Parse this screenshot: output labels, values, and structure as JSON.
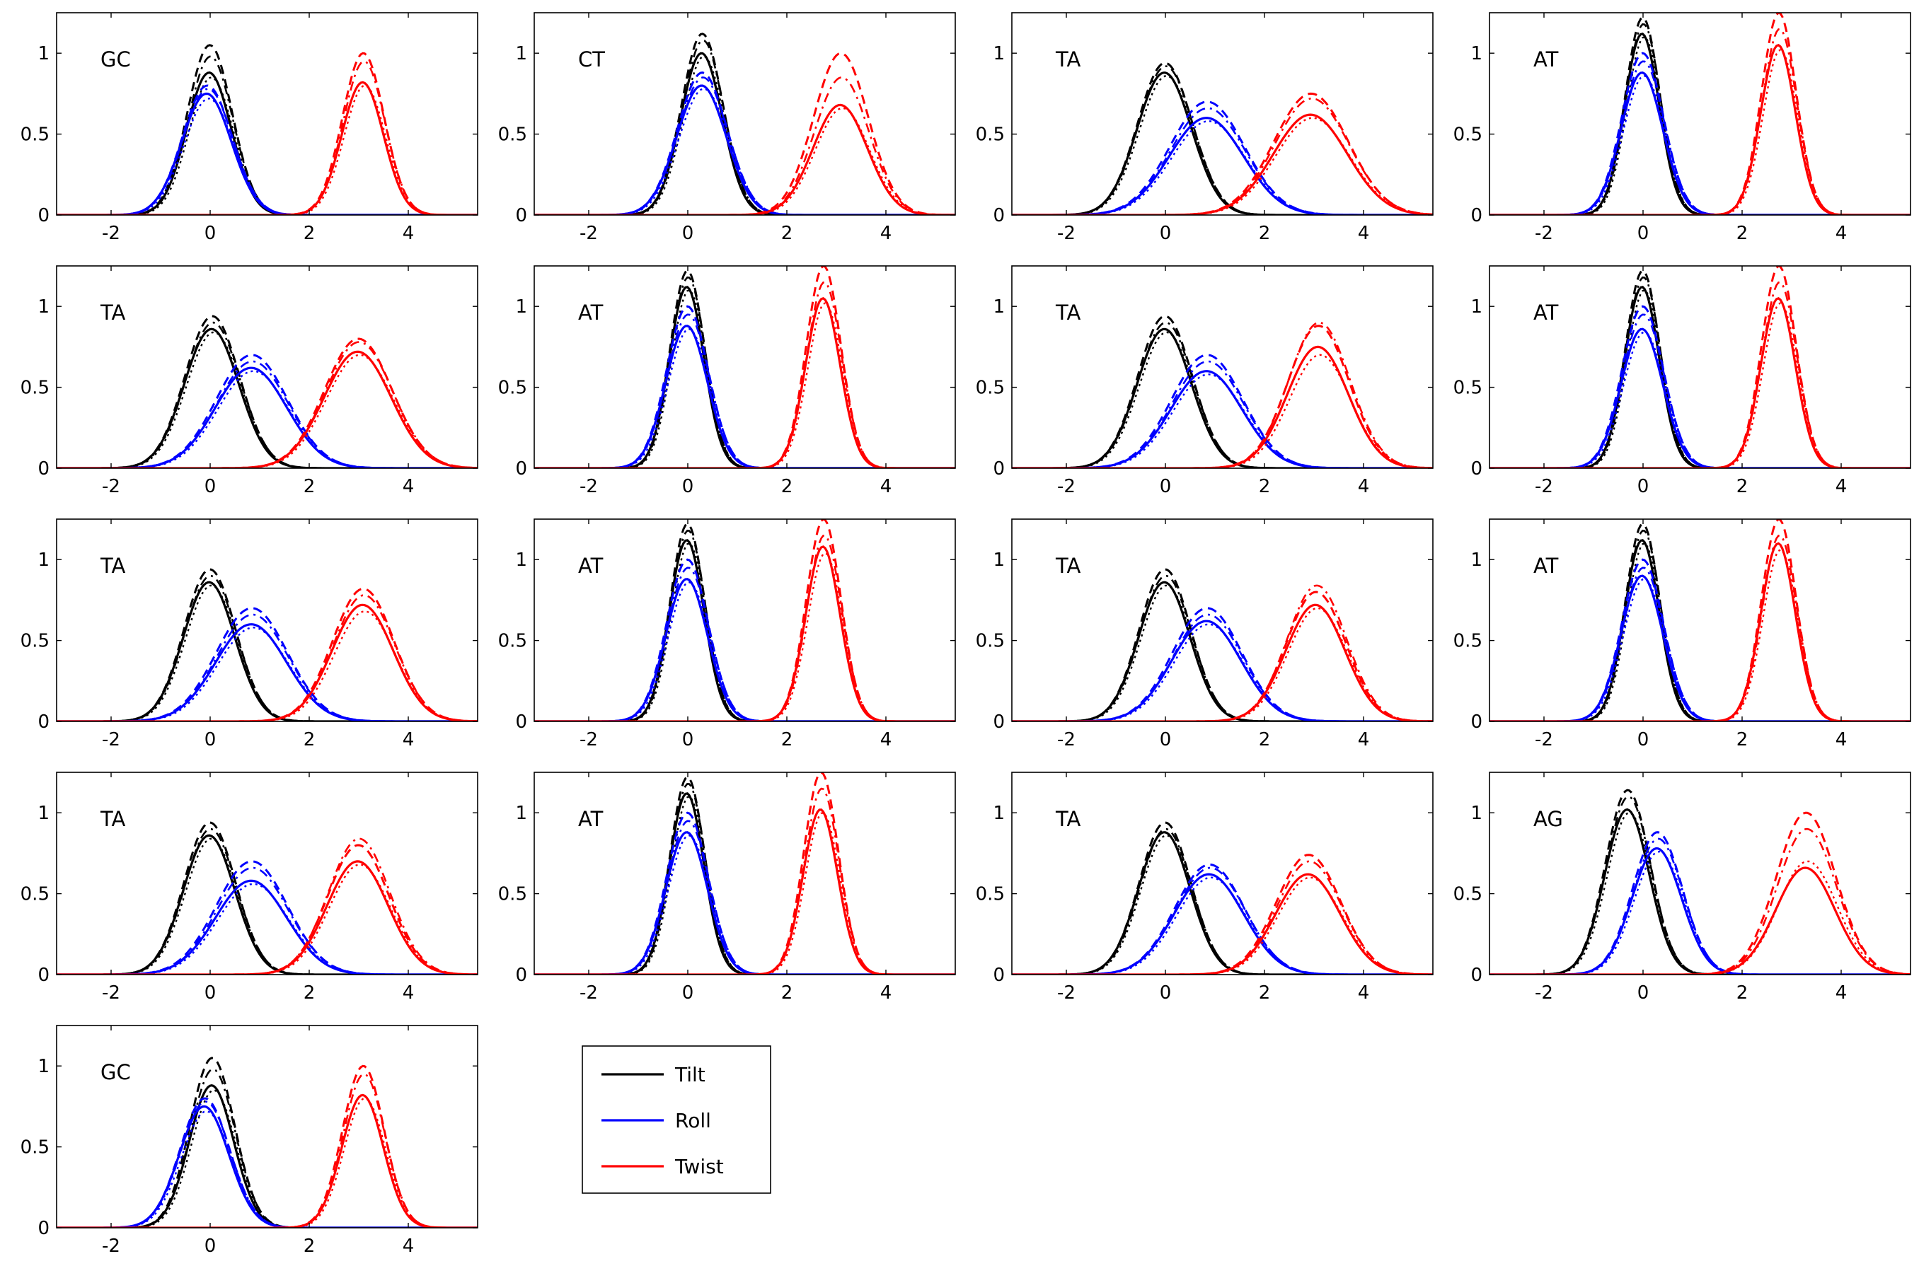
{
  "chart_data": {
    "type": "line",
    "xlim": [
      -3.1,
      5.4
    ],
    "ylim": [
      0,
      1.25
    ],
    "xticks": [
      -2,
      0,
      2,
      4
    ],
    "yticks": [
      0,
      0.5,
      1
    ],
    "ytick_labels": [
      "0",
      "0.5",
      "1"
    ],
    "grid": false,
    "line_styles": [
      "solid",
      "dashed",
      "dashdot",
      "dotted"
    ],
    "legend": {
      "placement": "bottom, right of the last panel",
      "entries": [
        {
          "label": "Tilt",
          "color": "#000000"
        },
        {
          "label": "Roll",
          "color": "#0000ff"
        },
        {
          "label": "Twist",
          "color": "#ff0000"
        }
      ]
    },
    "panels": [
      {
        "label": "GC",
        "tilt": [
          0.0,
          0.45,
          [
            0.88,
            1.05,
            0.98,
            0.85
          ]
        ],
        "roll": [
          -0.05,
          0.5,
          [
            0.75,
            0.8,
            0.78,
            0.72
          ]
        ],
        "twist": [
          3.1,
          0.42,
          [
            0.82,
            1.0,
            0.95,
            0.8
          ]
        ]
      },
      {
        "label": "CT",
        "tilt": [
          0.3,
          0.42,
          [
            1.0,
            1.12,
            1.08,
            0.98
          ]
        ],
        "roll": [
          0.3,
          0.5,
          [
            0.8,
            0.88,
            0.85,
            0.78
          ]
        ],
        "twist": [
          3.1,
          0.55,
          [
            0.68,
            1.0,
            0.85,
            0.66
          ]
        ]
      },
      {
        "label": "TA",
        "tilt": [
          0.0,
          0.55,
          [
            0.88,
            0.94,
            0.92,
            0.86
          ]
        ],
        "roll": [
          0.85,
          0.75,
          [
            0.6,
            0.7,
            0.66,
            0.58
          ]
        ],
        "twist": [
          2.95,
          0.75,
          [
            0.62,
            0.75,
            0.72,
            0.6
          ]
        ]
      },
      {
        "label": "AT",
        "tilt": [
          0.0,
          0.35,
          [
            1.12,
            1.22,
            1.18,
            1.1
          ]
        ],
        "roll": [
          0.0,
          0.42,
          [
            0.88,
            1.0,
            0.95,
            0.86
          ]
        ],
        "twist": [
          2.75,
          0.35,
          [
            1.05,
            1.25,
            1.15,
            1.02
          ]
        ]
      },
      {
        "label": "TA",
        "tilt": [
          0.05,
          0.55,
          [
            0.86,
            0.94,
            0.9,
            0.84
          ]
        ],
        "roll": [
          0.85,
          0.72,
          [
            0.62,
            0.7,
            0.66,
            0.6
          ]
        ],
        "twist": [
          3.0,
          0.68,
          [
            0.72,
            0.8,
            0.78,
            0.7
          ]
        ]
      },
      {
        "label": "AT",
        "tilt": [
          0.0,
          0.35,
          [
            1.12,
            1.22,
            1.18,
            1.1
          ]
        ],
        "roll": [
          0.0,
          0.42,
          [
            0.88,
            1.0,
            0.95,
            0.86
          ]
        ],
        "twist": [
          2.75,
          0.35,
          [
            1.05,
            1.25,
            1.15,
            1.02
          ]
        ]
      },
      {
        "label": "TA",
        "tilt": [
          0.0,
          0.55,
          [
            0.86,
            0.94,
            0.9,
            0.84
          ]
        ],
        "roll": [
          0.85,
          0.72,
          [
            0.6,
            0.7,
            0.66,
            0.58
          ]
        ],
        "twist": [
          3.1,
          0.62,
          [
            0.75,
            0.88,
            0.9,
            0.7
          ]
        ]
      },
      {
        "label": "AT",
        "tilt": [
          0.0,
          0.35,
          [
            1.12,
            1.22,
            1.18,
            1.1
          ]
        ],
        "roll": [
          0.0,
          0.42,
          [
            0.86,
            1.0,
            0.95,
            0.84
          ]
        ],
        "twist": [
          2.75,
          0.35,
          [
            1.05,
            1.25,
            1.15,
            1.02
          ]
        ]
      },
      {
        "label": "TA",
        "tilt": [
          0.0,
          0.52,
          [
            0.86,
            0.94,
            0.9,
            0.84
          ]
        ],
        "roll": [
          0.85,
          0.72,
          [
            0.6,
            0.7,
            0.66,
            0.58
          ]
        ],
        "twist": [
          3.1,
          0.62,
          [
            0.72,
            0.82,
            0.78,
            0.68
          ]
        ]
      },
      {
        "label": "AT",
        "tilt": [
          0.0,
          0.35,
          [
            1.12,
            1.22,
            1.18,
            1.1
          ]
        ],
        "roll": [
          0.0,
          0.42,
          [
            0.88,
            1.0,
            0.95,
            0.86
          ]
        ],
        "twist": [
          2.75,
          0.35,
          [
            1.08,
            1.25,
            1.15,
            1.04
          ]
        ]
      },
      {
        "label": "TA",
        "tilt": [
          0.0,
          0.52,
          [
            0.86,
            0.94,
            0.9,
            0.84
          ]
        ],
        "roll": [
          0.85,
          0.7,
          [
            0.62,
            0.7,
            0.66,
            0.6
          ]
        ],
        "twist": [
          3.05,
          0.6,
          [
            0.72,
            0.8,
            0.84,
            0.7
          ]
        ]
      },
      {
        "label": "AT",
        "tilt": [
          0.0,
          0.35,
          [
            1.12,
            1.22,
            1.18,
            1.1
          ]
        ],
        "roll": [
          0.0,
          0.42,
          [
            0.9,
            1.0,
            0.95,
            0.88
          ]
        ],
        "twist": [
          2.75,
          0.35,
          [
            1.1,
            1.25,
            1.15,
            1.06
          ]
        ]
      },
      {
        "label": "TA",
        "tilt": [
          0.0,
          0.52,
          [
            0.86,
            0.94,
            0.9,
            0.84
          ]
        ],
        "roll": [
          0.85,
          0.72,
          [
            0.58,
            0.7,
            0.66,
            0.56
          ]
        ],
        "twist": [
          3.0,
          0.62,
          [
            0.7,
            0.8,
            0.84,
            0.68
          ]
        ]
      },
      {
        "label": "AT",
        "tilt": [
          0.0,
          0.35,
          [
            1.12,
            1.22,
            1.18,
            1.1
          ]
        ],
        "roll": [
          0.0,
          0.42,
          [
            0.88,
            1.0,
            0.95,
            0.86
          ]
        ],
        "twist": [
          2.7,
          0.35,
          [
            1.02,
            1.25,
            1.15,
            1.0
          ]
        ]
      },
      {
        "label": "TA",
        "tilt": [
          0.0,
          0.52,
          [
            0.88,
            0.94,
            0.9,
            0.86
          ]
        ],
        "roll": [
          0.9,
          0.7,
          [
            0.62,
            0.68,
            0.66,
            0.6
          ]
        ],
        "twist": [
          2.9,
          0.65,
          [
            0.62,
            0.74,
            0.7,
            0.6
          ]
        ]
      },
      {
        "label": "AG",
        "tilt": [
          -0.3,
          0.45,
          [
            1.02,
            1.14,
            1.1,
            1.0
          ]
        ],
        "roll": [
          0.3,
          0.5,
          [
            0.78,
            0.88,
            0.84,
            0.76
          ]
        ],
        "twist": [
          3.3,
          0.6,
          [
            0.66,
            1.0,
            0.9,
            0.7
          ]
        ]
      },
      {
        "label": "GC",
        "tilt": [
          0.05,
          0.45,
          [
            0.88,
            1.05,
            0.98,
            0.85
          ]
        ],
        "roll": [
          -0.1,
          0.5,
          [
            0.75,
            0.8,
            0.78,
            0.72
          ]
        ],
        "twist": [
          3.1,
          0.42,
          [
            0.82,
            1.0,
            0.95,
            0.8
          ]
        ]
      }
    ]
  }
}
